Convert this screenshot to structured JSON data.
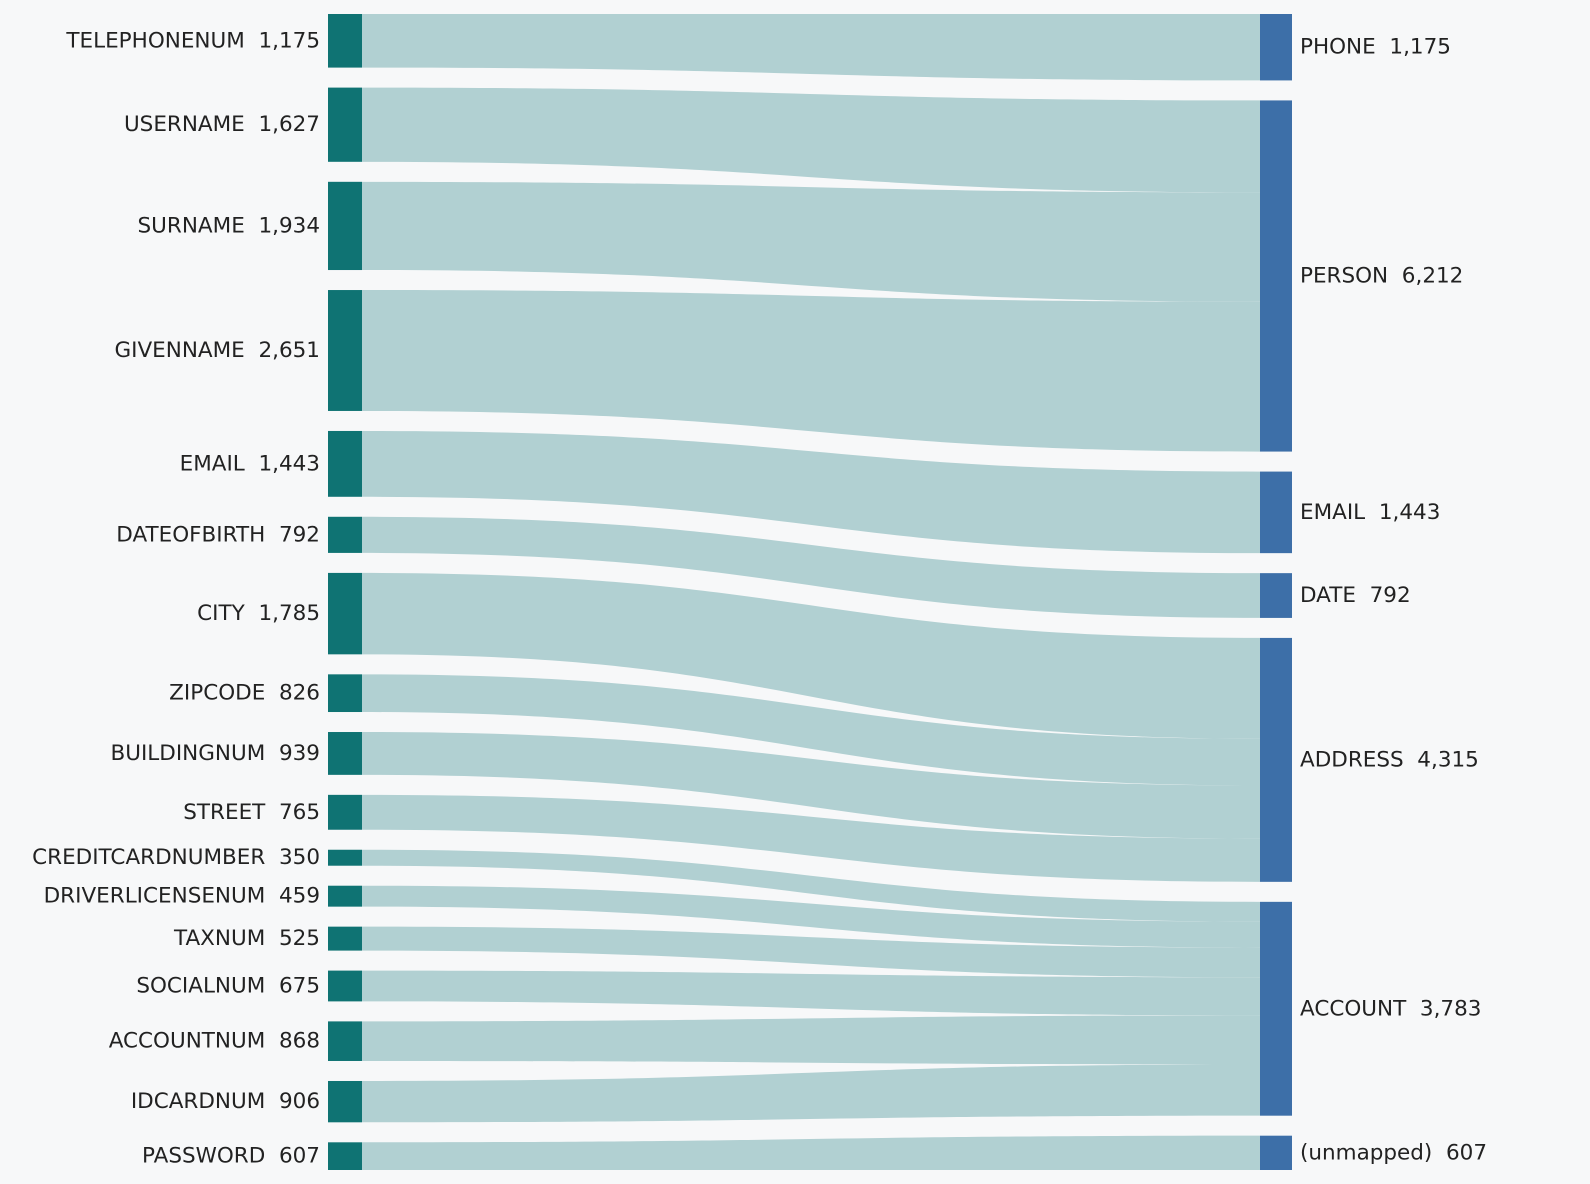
{
  "chart_data": {
    "type": "sankey",
    "title": "",
    "sources": [
      {
        "name": "TELEPHONENUM",
        "value_label": "1,175",
        "value": 1175,
        "target": "PHONE"
      },
      {
        "name": "USERNAME",
        "value_label": "1,627",
        "value": 1627,
        "target": "PERSON"
      },
      {
        "name": "SURNAME",
        "value_label": "1,934",
        "value": 1934,
        "target": "PERSON"
      },
      {
        "name": "GIVENNAME",
        "value_label": "2,651",
        "value": 2651,
        "target": "PERSON"
      },
      {
        "name": "EMAIL",
        "value_label": "1,443",
        "value": 1443,
        "target": "EMAIL"
      },
      {
        "name": "DATEOFBIRTH",
        "value_label": "792",
        "value": 792,
        "target": "DATE"
      },
      {
        "name": "CITY",
        "value_label": "1,785",
        "value": 1785,
        "target": "ADDRESS"
      },
      {
        "name": "ZIPCODE",
        "value_label": "826",
        "value": 826,
        "target": "ADDRESS"
      },
      {
        "name": "BUILDINGNUM",
        "value_label": "939",
        "value": 939,
        "target": "ADDRESS"
      },
      {
        "name": "STREET",
        "value_label": "765",
        "value": 765,
        "target": "ADDRESS"
      },
      {
        "name": "CREDITCARDNUMBER",
        "value_label": "350",
        "value": 350,
        "target": "ACCOUNT"
      },
      {
        "name": "DRIVERLICENSENUM",
        "value_label": "459",
        "value": 459,
        "target": "ACCOUNT"
      },
      {
        "name": "TAXNUM",
        "value_label": "525",
        "value": 525,
        "target": "ACCOUNT"
      },
      {
        "name": "SOCIALNUM",
        "value_label": "675",
        "value": 675,
        "target": "ACCOUNT"
      },
      {
        "name": "ACCOUNTNUM",
        "value_label": "868",
        "value": 868,
        "target": "ACCOUNT"
      },
      {
        "name": "IDCARDNUM",
        "value_label": "906",
        "value": 906,
        "target": "ACCOUNT"
      },
      {
        "name": "PASSWORD",
        "value_label": "607",
        "value": 607,
        "target": "(unmapped)"
      }
    ],
    "targets": [
      {
        "name": "PHONE",
        "value_label": "1,175",
        "value": 1175
      },
      {
        "name": "PERSON",
        "value_label": "6,212",
        "value": 6212
      },
      {
        "name": "EMAIL",
        "value_label": "1,443",
        "value": 1443
      },
      {
        "name": "DATE",
        "value_label": "792",
        "value": 792
      },
      {
        "name": "ADDRESS",
        "value_label": "4,315",
        "value": 4315
      },
      {
        "name": "ACCOUNT",
        "value_label": "3,783",
        "value": 3783
      },
      {
        "name": "(unmapped)",
        "value_label": "607",
        "value": 607
      }
    ],
    "colors": {
      "source_node": "#0f7373",
      "target_node": "#3d6fa8",
      "link": "#b1d0d2",
      "background": "#f7f8f9",
      "text": "#222222"
    }
  }
}
